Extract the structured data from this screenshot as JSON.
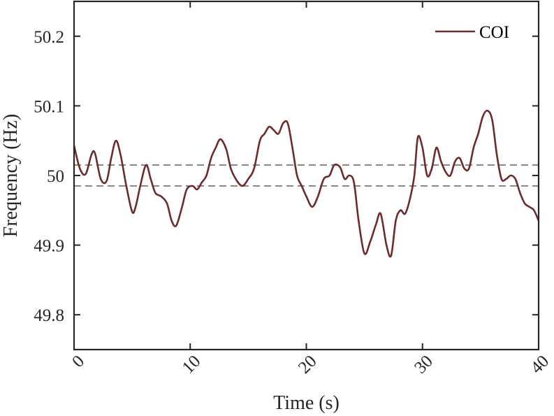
{
  "chart_data": {
    "type": "line",
    "xlabel": "Time (s)",
    "ylabel": "Frequency (Hz)",
    "xlim": [
      0,
      40
    ],
    "ylim": [
      49.75,
      50.25
    ],
    "xticks": [
      0,
      10,
      20,
      30,
      40
    ],
    "xtick_labels": [
      "0",
      "10",
      "20",
      "30",
      "40"
    ],
    "yticks": [
      49.8,
      49.9,
      50.0,
      50.1,
      50.2
    ],
    "ytick_labels": [
      "49.8",
      "49.9",
      "50",
      "50.1",
      "50.2"
    ],
    "grid": false,
    "legend": {
      "position": "top-right",
      "entries": [
        "COI"
      ]
    },
    "reference_lines": [
      50.015,
      49.985
    ],
    "colors": {
      "series": "#6e2b2b",
      "reference": "#555555",
      "axes": "#262626"
    },
    "series": [
      {
        "name": "COI",
        "x": [
          0,
          0.5,
          1.0,
          1.5,
          1.8,
          2.3,
          2.8,
          3.2,
          3.6,
          4.0,
          4.5,
          5.0,
          5.3,
          5.7,
          6.2,
          6.6,
          7.0,
          7.5,
          8.0,
          8.4,
          8.8,
          9.3,
          9.7,
          10.2,
          10.6,
          11.0,
          11.4,
          11.8,
          12.2,
          12.6,
          13.1,
          13.5,
          14.0,
          14.5,
          15.0,
          15.5,
          16.0,
          16.4,
          16.8,
          17.2,
          17.6,
          18.0,
          18.4,
          18.8,
          19.2,
          19.6,
          20.0,
          20.5,
          21.0,
          21.5,
          22.0,
          22.4,
          22.9,
          23.3,
          23.7,
          24.1,
          24.5,
          25.0,
          25.5,
          26.0,
          26.4,
          26.9,
          27.3,
          27.7,
          28.1,
          28.5,
          28.9,
          29.3,
          29.6,
          30.0,
          30.4,
          30.8,
          31.2,
          31.6,
          32.0,
          32.4,
          32.8,
          33.2,
          33.6,
          34.0,
          34.4,
          34.8,
          35.2,
          35.6,
          36.0,
          36.4,
          36.8,
          37.2,
          37.6,
          38.0,
          38.4,
          38.8,
          39.2,
          39.6,
          40.0
        ],
        "y": [
          50.043,
          50.01,
          50.002,
          50.03,
          50.032,
          49.995,
          49.992,
          50.025,
          50.05,
          50.03,
          49.985,
          49.948,
          49.955,
          49.985,
          50.015,
          49.995,
          49.975,
          49.97,
          49.96,
          49.935,
          49.928,
          49.955,
          49.98,
          49.985,
          49.98,
          49.99,
          50.0,
          50.025,
          50.04,
          50.052,
          50.038,
          50.01,
          49.993,
          49.985,
          49.995,
          50.01,
          50.05,
          50.06,
          50.07,
          50.065,
          50.06,
          50.075,
          50.075,
          50.04,
          50.0,
          49.985,
          49.97,
          49.955,
          49.97,
          49.995,
          50.0,
          50.015,
          50.012,
          49.995,
          50.0,
          49.99,
          49.935,
          49.888,
          49.905,
          49.93,
          49.945,
          49.9,
          49.885,
          49.935,
          49.95,
          49.945,
          49.965,
          50.0,
          50.055,
          50.04,
          50.0,
          50.01,
          50.04,
          50.02,
          50.005,
          50.0,
          50.02,
          50.025,
          50.01,
          50.01,
          50.04,
          50.06,
          50.085,
          50.093,
          50.08,
          50.03,
          49.995,
          49.995,
          50.0,
          49.995,
          49.975,
          49.96,
          49.955,
          49.95,
          49.935
        ]
      }
    ]
  }
}
